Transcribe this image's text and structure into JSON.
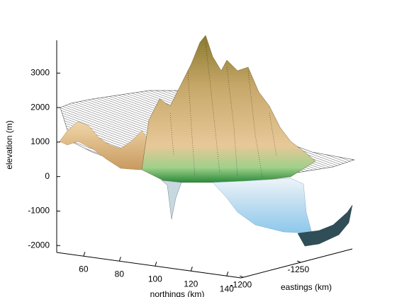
{
  "chart_data": {
    "type": "surface3d",
    "zlabel": "elevation (m)",
    "xlabel": "northings (km)",
    "ylabel": "eastings (km)",
    "zlim": [
      -2200,
      3950
    ],
    "zticks": [
      -2000,
      -1000,
      0,
      1000,
      2000,
      3000
    ],
    "xlim": [
      45,
      148
    ],
    "xticks": [
      60,
      80,
      100,
      120,
      140
    ],
    "ylim": [
      -1295,
      -1198
    ],
    "yticks": [
      -1250,
      -1200
    ]
  }
}
